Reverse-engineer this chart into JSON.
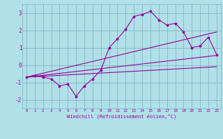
{
  "xlabel": "Windchill (Refroidissement éolien,°C)",
  "bg_color": "#b0e0e8",
  "grid_color": "#7ab0c0",
  "line_color": "#990099",
  "marker": "*",
  "xlim": [
    -0.5,
    23.5
  ],
  "ylim": [
    -2.5,
    3.5
  ],
  "xticks": [
    0,
    1,
    2,
    3,
    4,
    5,
    6,
    7,
    8,
    9,
    10,
    11,
    12,
    13,
    14,
    15,
    16,
    17,
    18,
    19,
    20,
    21,
    22,
    23
  ],
  "yticks": [
    -2,
    -1,
    0,
    1,
    2,
    3
  ],
  "curve1": [
    -0.7,
    -0.6,
    -0.7,
    -0.8,
    -1.2,
    -1.1,
    -1.8,
    -1.2,
    -0.8,
    -0.3,
    1.0,
    1.5,
    2.05,
    2.8,
    2.9,
    3.1,
    2.6,
    2.3,
    2.4,
    1.9,
    1.0,
    1.1,
    1.6,
    0.6
  ],
  "curve2_x": [
    0,
    23
  ],
  "curve2_y": [
    -0.7,
    0.55
  ],
  "curve3_x": [
    0,
    23
  ],
  "curve3_y": [
    -0.7,
    1.9
  ],
  "curve4_x": [
    0,
    23
  ],
  "curve4_y": [
    -0.7,
    -0.1
  ]
}
